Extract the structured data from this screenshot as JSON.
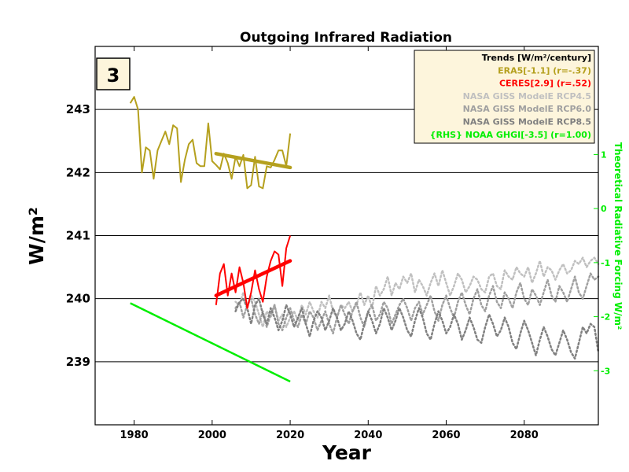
{
  "chart_data": {
    "type": "line",
    "title": "Outgoing Infrared Radiation",
    "panel_badge": "3",
    "xlabel": "Year",
    "ylabel": "W/m²",
    "y2label": "Theoretical Radiative Forcing W/m²",
    "xlim": [
      1970,
      2099
    ],
    "ylim": [
      238,
      244
    ],
    "y2lim": [
      -4,
      3
    ],
    "xticks": [
      1980,
      2000,
      2020,
      2040,
      2060,
      2080
    ],
    "yticks": [
      239,
      240,
      241,
      242,
      243
    ],
    "y2ticks": [
      -3,
      -2,
      -1,
      0,
      1
    ],
    "grid": "horizontal",
    "legend": {
      "placement": "top-right",
      "background": "#fdf5dc",
      "entries": [
        {
          "text": "Trends [W/m²/century]",
          "color": "#000000"
        },
        {
          "text": "ERA5[-1.1] (r=-.37)",
          "color": "#b5a01e"
        },
        {
          "text": "CERES[2.9] (r=.52)",
          "color": "#ff0000"
        },
        {
          "text": "NASA GISS ModelE RCP4.5",
          "color": "#c0c0c0"
        },
        {
          "text": "NASA GISS ModelE RCP6.0",
          "color": "#a0a0a0"
        },
        {
          "text": "NASA GISS ModelE RCP8.5",
          "color": "#808080"
        },
        {
          "text": "{RHS} NOAA GHGI[-3.5] (r=1.00)",
          "color": "#00ee00"
        }
      ]
    },
    "colors": {
      "era5": "#b5a01e",
      "ceres": "#ff0000",
      "rcp45": "#c0c0c0",
      "rcp60": "#a0a0a0",
      "rcp85": "#808080",
      "ghgi": "#00ee00"
    },
    "series": [
      {
        "key": "era5",
        "name": "ERA5",
        "style": "solid",
        "x": [
          1979,
          1980,
          1981,
          1982,
          1983,
          1984,
          1985,
          1986,
          1987,
          1988,
          1989,
          1990,
          1991,
          1992,
          1993,
          1994,
          1995,
          1996,
          1997,
          1998,
          1999,
          2000,
          2001,
          2002,
          2003,
          2004,
          2005,
          2006,
          2007,
          2008,
          2009,
          2010,
          2011,
          2012,
          2013,
          2014,
          2015,
          2016,
          2017,
          2018,
          2019,
          2020
        ],
        "y": [
          243.1,
          243.2,
          243.0,
          242.0,
          242.4,
          242.35,
          241.9,
          242.35,
          242.5,
          242.65,
          242.45,
          242.75,
          242.7,
          241.85,
          242.2,
          242.45,
          242.52,
          242.15,
          242.1,
          242.1,
          242.78,
          242.18,
          242.12,
          242.05,
          242.3,
          242.15,
          241.9,
          242.25,
          242.1,
          242.28,
          241.75,
          241.8,
          242.25,
          241.78,
          241.75,
          242.1,
          242.08,
          242.2,
          242.35,
          242.35,
          242.1,
          242.62
        ]
      },
      {
        "key": "ceres",
        "name": "CERES",
        "style": "solid",
        "x": [
          2001,
          2002,
          2003,
          2004,
          2005,
          2006,
          2007,
          2008,
          2009,
          2010,
          2011,
          2012,
          2013,
          2014,
          2015,
          2016,
          2017,
          2018,
          2019,
          2020
        ],
        "y": [
          239.9,
          240.4,
          240.55,
          240.05,
          240.4,
          240.1,
          240.5,
          240.25,
          239.85,
          240.1,
          240.45,
          240.15,
          239.95,
          240.35,
          240.6,
          240.75,
          240.7,
          240.2,
          240.8,
          241.0
        ]
      },
      {
        "key": "ghgi",
        "name": "NOAA GHGI",
        "axis": "right",
        "style": "solid",
        "x": [
          1979,
          2020
        ],
        "y": [
          -1.75,
          -3.2
        ]
      },
      {
        "key": "rcp45",
        "name": "NASA GISS ModelE RCP4.5",
        "style": "dotted",
        "x_start": 2006,
        "y": [
          239.95,
          239.9,
          240.1,
          239.85,
          240.05,
          239.95,
          239.75,
          239.55,
          239.8,
          239.7,
          239.9,
          239.65,
          239.75,
          239.55,
          239.7,
          239.8,
          239.65,
          239.9,
          239.75,
          239.95,
          239.8,
          239.7,
          239.95,
          239.85,
          240.05,
          239.8,
          239.7,
          239.9,
          239.85,
          239.95,
          239.8,
          239.9,
          240.1,
          239.9,
          240.05,
          239.85,
          240.2,
          240.05,
          240.15,
          240.35,
          240.05,
          240.25,
          240.15,
          240.35,
          240.25,
          240.4,
          240.1,
          240.3,
          240.2,
          240.05,
          240.25,
          240.4,
          240.2,
          240.45,
          240.25,
          240.05,
          240.2,
          240.4,
          240.3,
          240.1,
          240.2,
          240.35,
          240.3,
          240.15,
          240.1,
          240.35,
          240.4,
          240.2,
          240.15,
          240.45,
          240.35,
          240.3,
          240.5,
          240.4,
          240.35,
          240.5,
          240.25,
          240.4,
          240.6,
          240.35,
          240.5,
          240.45,
          240.3,
          240.45,
          240.55,
          240.4,
          240.45,
          240.6,
          240.55,
          240.65,
          240.5,
          240.6,
          240.65,
          240.55
        ]
      },
      {
        "key": "rcp60",
        "name": "NASA GISS ModelE RCP6.0",
        "style": "dotted",
        "x_start": 2006,
        "y": [
          239.85,
          239.95,
          239.7,
          239.9,
          240.0,
          239.75,
          239.6,
          239.8,
          239.55,
          239.75,
          239.9,
          239.6,
          239.5,
          239.7,
          239.85,
          239.65,
          239.55,
          239.75,
          239.6,
          239.8,
          239.7,
          239.5,
          239.65,
          239.8,
          239.6,
          239.45,
          239.7,
          239.9,
          239.75,
          239.6,
          239.8,
          239.95,
          239.7,
          239.55,
          239.8,
          239.9,
          239.65,
          239.75,
          239.95,
          239.85,
          239.6,
          239.75,
          239.9,
          240.0,
          239.85,
          239.65,
          239.85,
          239.95,
          239.75,
          239.9,
          240.05,
          239.8,
          239.65,
          239.9,
          240.05,
          239.85,
          239.7,
          239.95,
          240.1,
          239.9,
          239.75,
          240.0,
          240.15,
          239.9,
          239.8,
          240.05,
          240.2,
          239.95,
          239.85,
          240.1,
          240.0,
          239.85,
          240.1,
          240.25,
          240.0,
          239.9,
          240.15,
          240.05,
          239.9,
          240.1,
          240.3,
          240.05,
          239.95,
          240.2,
          240.1,
          239.95,
          240.15,
          240.35,
          240.1,
          240.0,
          240.2,
          240.4,
          240.3,
          240.35
        ]
      },
      {
        "key": "rcp85",
        "name": "NASA GISS ModelE RCP8.5",
        "style": "dotted",
        "x_start": 2006,
        "y": [
          239.8,
          239.95,
          240.0,
          239.85,
          239.6,
          239.9,
          240.0,
          239.75,
          239.6,
          239.85,
          239.7,
          239.5,
          239.65,
          239.9,
          239.75,
          239.55,
          239.7,
          239.85,
          239.6,
          239.4,
          239.65,
          239.8,
          239.7,
          239.5,
          239.65,
          239.85,
          239.7,
          239.5,
          239.6,
          239.8,
          239.65,
          239.45,
          239.35,
          239.6,
          239.8,
          239.65,
          239.45,
          239.6,
          239.85,
          239.7,
          239.5,
          239.65,
          239.85,
          239.7,
          239.5,
          239.4,
          239.65,
          239.85,
          239.7,
          239.45,
          239.35,
          239.6,
          239.8,
          239.65,
          239.45,
          239.55,
          239.75,
          239.6,
          239.35,
          239.5,
          239.7,
          239.55,
          239.35,
          239.3,
          239.55,
          239.75,
          239.6,
          239.4,
          239.5,
          239.7,
          239.55,
          239.3,
          239.2,
          239.45,
          239.65,
          239.5,
          239.3,
          239.1,
          239.35,
          239.55,
          239.4,
          239.2,
          239.1,
          239.3,
          239.5,
          239.35,
          239.15,
          239.05,
          239.3,
          239.55,
          239.45,
          239.6,
          239.55,
          239.15
        ]
      }
    ],
    "trend_lines": [
      {
        "key": "era5",
        "x": [
          2001,
          2020
        ],
        "y": [
          242.3,
          242.08
        ]
      },
      {
        "key": "ceres",
        "x": [
          2001,
          2020
        ],
        "y": [
          240.05,
          240.6
        ]
      }
    ]
  }
}
